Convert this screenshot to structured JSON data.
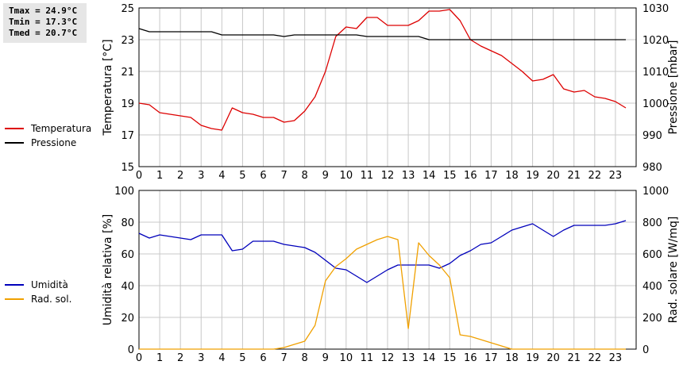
{
  "stats": {
    "tmax": "Tmax = 24.9°C",
    "tmin": "Tmin = 17.3°C",
    "tmed": "Tmed = 20.7°C"
  },
  "legend_top": {
    "temp": "Temperatura",
    "press": "Pressione"
  },
  "legend_bottom": {
    "hum": "Umidità",
    "rad": "Rad. sol."
  },
  "colors": {
    "temp": "#dd0000",
    "press": "#000000",
    "hum": "#0000bb",
    "rad": "#f0a000",
    "grid": "#c8c8c8"
  },
  "chart_data": [
    {
      "type": "line",
      "x": [
        0,
        0.5,
        1,
        1.5,
        2,
        2.5,
        3,
        3.5,
        4,
        4.5,
        5,
        5.5,
        6,
        6.5,
        7,
        7.5,
        8,
        8.5,
        9,
        9.5,
        10,
        10.5,
        11,
        11.5,
        12,
        12.5,
        13,
        13.5,
        14,
        14.5,
        15,
        15.5,
        16,
        16.5,
        17,
        17.5,
        18,
        18.5,
        19,
        19.5,
        20,
        20.5,
        21,
        21.5,
        22,
        22.5,
        23,
        23.5
      ],
      "x_ticks": [
        "0",
        "1",
        "2",
        "3",
        "4",
        "5",
        "6",
        "7",
        "8",
        "9",
        "10",
        "11",
        "12",
        "13",
        "14",
        "15",
        "16",
        "17",
        "18",
        "19",
        "20",
        "21",
        "22",
        "23"
      ],
      "y_ticks_left": [
        "15",
        "17",
        "19",
        "21",
        "23",
        "25"
      ],
      "y_ticks_right": [
        "980",
        "990",
        "1000",
        "1010",
        "1020",
        "1030"
      ],
      "ylabel": "Temperatura [°C]",
      "ylabel_right": "Pressione [mbar]",
      "xlim": [
        0,
        24
      ],
      "ylim": [
        15,
        25
      ],
      "ylim_right": [
        980,
        1030
      ],
      "grid": true,
      "series": [
        {
          "name": "Temperatura",
          "axis": "left",
          "values": [
            19.0,
            18.9,
            18.4,
            18.3,
            18.2,
            18.1,
            17.6,
            17.4,
            17.3,
            18.7,
            18.4,
            18.3,
            18.1,
            18.1,
            17.8,
            17.9,
            18.5,
            19.4,
            21.0,
            23.2,
            23.8,
            23.7,
            24.4,
            24.4,
            23.9,
            23.9,
            23.9,
            24.2,
            24.8,
            24.8,
            24.9,
            24.2,
            23.0,
            22.6,
            22.3,
            22.0,
            21.5,
            21.0,
            20.4,
            20.5,
            20.8,
            19.9,
            19.7,
            19.8,
            19.4,
            19.3,
            19.1,
            18.7
          ]
        },
        {
          "name": "Pressione",
          "axis": "right",
          "values": [
            1023.5,
            1022.5,
            1022.5,
            1022.5,
            1022.5,
            1022.5,
            1022.5,
            1022.5,
            1021.5,
            1021.5,
            1021.5,
            1021.5,
            1021.5,
            1021.5,
            1021,
            1021.5,
            1021.5,
            1021.5,
            1021.5,
            1021.5,
            1021.5,
            1021.5,
            1021,
            1021,
            1021,
            1021,
            1021,
            1021,
            1020,
            1020,
            1020,
            1020,
            1020,
            1020,
            1020,
            1020,
            1020,
            1020,
            1020,
            1020,
            1020,
            1020,
            1020,
            1020,
            1020,
            1020,
            1020,
            1020
          ]
        }
      ]
    },
    {
      "type": "line",
      "x": [
        0,
        0.5,
        1,
        1.5,
        2,
        2.5,
        3,
        3.5,
        4,
        4.5,
        5,
        5.5,
        6,
        6.5,
        7,
        7.5,
        8,
        8.5,
        9,
        9.5,
        10,
        10.5,
        11,
        11.5,
        12,
        12.5,
        13,
        13.5,
        14,
        14.5,
        15,
        15.5,
        16,
        16.5,
        17,
        17.5,
        18,
        18.5,
        19,
        19.5,
        20,
        20.5,
        21,
        21.5,
        22,
        22.5,
        23,
        23.5
      ],
      "x_ticks": [
        "0",
        "1",
        "2",
        "3",
        "4",
        "5",
        "6",
        "7",
        "8",
        "9",
        "10",
        "11",
        "12",
        "13",
        "14",
        "15",
        "16",
        "17",
        "18",
        "19",
        "20",
        "21",
        "22",
        "23"
      ],
      "y_ticks_left": [
        "0",
        "20",
        "40",
        "60",
        "80",
        "100"
      ],
      "y_ticks_right": [
        "0",
        "200",
        "400",
        "600",
        "800",
        "1000"
      ],
      "ylabel": "Umidità relativa [%]",
      "ylabel_right": "Rad. solare [W/mq]",
      "xlim": [
        0,
        24
      ],
      "ylim": [
        0,
        100
      ],
      "ylim_right": [
        0,
        1000
      ],
      "grid": true,
      "series": [
        {
          "name": "Umidità",
          "axis": "left",
          "values": [
            73,
            70,
            72,
            71,
            70,
            69,
            72,
            72,
            72,
            62,
            63,
            68,
            68,
            68,
            66,
            65,
            64,
            61,
            56,
            51,
            50,
            46,
            42,
            46,
            50,
            53,
            53,
            53,
            53,
            51,
            54,
            59,
            62,
            66,
            67,
            71,
            75,
            77,
            79,
            75,
            71,
            75,
            78,
            78,
            78,
            78,
            79,
            81
          ]
        },
        {
          "name": "Rad. sol.",
          "axis": "right",
          "values": [
            0,
            0,
            0,
            0,
            0,
            0,
            0,
            0,
            0,
            0,
            0,
            0,
            0,
            0,
            10,
            30,
            50,
            150,
            430,
            520,
            570,
            630,
            660,
            690,
            710,
            690,
            130,
            670,
            590,
            530,
            450,
            90,
            80,
            60,
            40,
            20,
            0,
            0,
            0,
            0,
            0,
            0,
            0,
            0,
            0,
            0,
            0,
            0
          ]
        }
      ]
    }
  ]
}
